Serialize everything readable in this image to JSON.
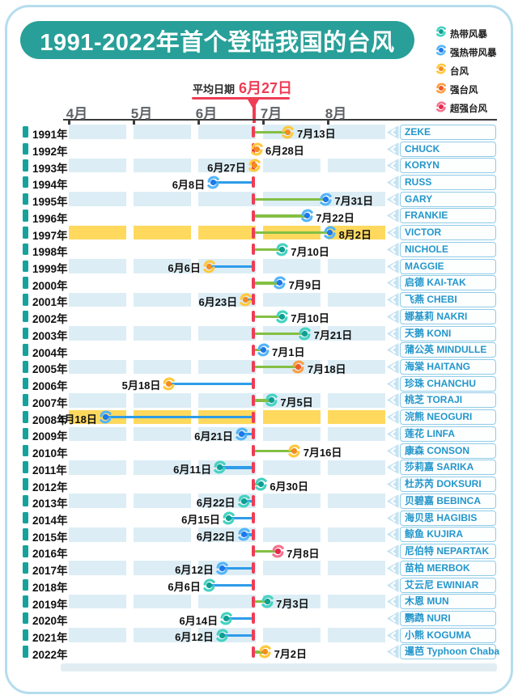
{
  "page": {
    "title": "1991-2022年首个登陆我国的台风"
  },
  "average": {
    "prefix": "平均日期",
    "date": "6月27日",
    "month": 6,
    "day": 27
  },
  "legend": [
    {
      "label": "热带风暴"
    },
    {
      "label": "强热带风暴"
    },
    {
      "label": "台风"
    },
    {
      "label": "强台风"
    },
    {
      "label": "超强台风"
    }
  ],
  "categories": {
    "热带风暴": {
      "arm": "#45d2c1",
      "core": "#0da092"
    },
    "强热带风暴": {
      "arm": "#55b5f8",
      "core": "#1d78ea"
    },
    "台风": {
      "arm": "#ffc93c",
      "core": "#f48c1e"
    },
    "强台风": {
      "arm": "#ff9d43",
      "core": "#ef5a22"
    },
    "超强台风": {
      "arm": "#f4738f",
      "core": "#e8284f"
    }
  },
  "colors": {
    "accent_teal": "#28a099",
    "stripe": "#dcedf5",
    "highlight": "#ffd95e",
    "red": "#ee3d55",
    "line_after": "#84bf44",
    "line_before": "#2e9ce9",
    "badge_arrow": "#c3e3f3",
    "badge_border": "#8fcbe6",
    "badge_text": "#2396cb"
  },
  "chart_data": {
    "type": "timeline",
    "title": "1991-2022年首个登陆我国的台风",
    "average_date_label": "平均日期 6月27日",
    "x_axis": {
      "labels": [
        "4月",
        "5月",
        "6月",
        "7月",
        "8月"
      ]
    },
    "rows": [
      {
        "year": "1991年",
        "date": "7月13日",
        "month": 7,
        "day": 13,
        "category": "台风",
        "name": "ZEKE",
        "highlight": false
      },
      {
        "year": "1992年",
        "date": "6月28日",
        "month": 6,
        "day": 28,
        "category": "台风",
        "name": "CHUCK",
        "highlight": false
      },
      {
        "year": "1993年",
        "date": "6月27日",
        "month": 6,
        "day": 27,
        "category": "台风",
        "name": "KORYN",
        "highlight": false
      },
      {
        "year": "1994年",
        "date": "6月8日",
        "month": 6,
        "day": 8,
        "category": "强热带风暴",
        "name": "RUSS",
        "highlight": false
      },
      {
        "year": "1995年",
        "date": "7月31日",
        "month": 7,
        "day": 31,
        "category": "强热带风暴",
        "name": "GARY",
        "highlight": false
      },
      {
        "year": "1996年",
        "date": "7月22日",
        "month": 7,
        "day": 22,
        "category": "强热带风暴",
        "name": "FRANKIE",
        "highlight": false
      },
      {
        "year": "1997年",
        "date": "8月2日",
        "month": 8,
        "day": 2,
        "category": "强热带风暴",
        "name": "VICTOR",
        "highlight": true
      },
      {
        "year": "1998年",
        "date": "7月10日",
        "month": 7,
        "day": 10,
        "category": "热带风暴",
        "name": "NICHOLE",
        "highlight": false
      },
      {
        "year": "1999年",
        "date": "6月6日",
        "month": 6,
        "day": 6,
        "category": "台风",
        "name": "MAGGIE",
        "highlight": false
      },
      {
        "year": "2000年",
        "date": "7月9日",
        "month": 7,
        "day": 9,
        "category": "强热带风暴",
        "name": "启德 KAI-TAK",
        "highlight": false
      },
      {
        "year": "2001年",
        "date": "6月23日",
        "month": 6,
        "day": 23,
        "category": "台风",
        "name": "飞燕 CHEBI",
        "highlight": false
      },
      {
        "year": "2002年",
        "date": "7月10日",
        "month": 7,
        "day": 10,
        "category": "热带风暴",
        "name": "娜基莉 NAKRI",
        "highlight": false
      },
      {
        "year": "2003年",
        "date": "7月21日",
        "month": 7,
        "day": 21,
        "category": "热带风暴",
        "name": "天鹅 KONI",
        "highlight": false
      },
      {
        "year": "2004年",
        "date": "7月1日",
        "month": 7,
        "day": 1,
        "category": "强热带风暴",
        "name": "蒲公英 MINDULLE",
        "highlight": false
      },
      {
        "year": "2005年",
        "date": "7月18日",
        "month": 7,
        "day": 18,
        "category": "强台风",
        "name": "海棠 HAITANG",
        "highlight": false
      },
      {
        "year": "2006年",
        "date": "5月18日",
        "month": 5,
        "day": 18,
        "category": "台风",
        "name": "珍珠 CHANCHU",
        "highlight": false
      },
      {
        "year": "2007年",
        "date": "7月5日",
        "month": 7,
        "day": 5,
        "category": "热带风暴",
        "name": "桃芝 TORAJI",
        "highlight": false
      },
      {
        "year": "2008年",
        "date": "4月18日",
        "month": 4,
        "day": 18,
        "category": "强热带风暴",
        "name": "浣熊 NEOGURI",
        "highlight": true
      },
      {
        "year": "2009年",
        "date": "6月21日",
        "month": 6,
        "day": 21,
        "category": "强热带风暴",
        "name": "莲花 LINFA",
        "highlight": false
      },
      {
        "year": "2010年",
        "date": "7月16日",
        "month": 7,
        "day": 16,
        "category": "台风",
        "name": "康森 CONSON",
        "highlight": false
      },
      {
        "year": "2011年",
        "date": "6月11日",
        "month": 6,
        "day": 11,
        "category": "热带风暴",
        "name": "莎莉嘉 SARIKA",
        "highlight": false
      },
      {
        "year": "2012年",
        "date": "6月30日",
        "month": 6,
        "day": 30,
        "category": "热带风暴",
        "name": "杜苏芮 DOKSURI",
        "highlight": false
      },
      {
        "year": "2013年",
        "date": "6月22日",
        "month": 6,
        "day": 22,
        "category": "热带风暴",
        "name": "贝碧嘉 BEBINCA",
        "highlight": false
      },
      {
        "year": "2014年",
        "date": "6月15日",
        "month": 6,
        "day": 15,
        "category": "热带风暴",
        "name": "海贝思 HAGIBIS",
        "highlight": false
      },
      {
        "year": "2015年",
        "date": "6月22日",
        "month": 6,
        "day": 22,
        "category": "强热带风暴",
        "name": "鲸鱼 KUJIRA",
        "highlight": false
      },
      {
        "year": "2016年",
        "date": "7月8日",
        "month": 7,
        "day": 8,
        "category": "超强台风",
        "name": "尼伯特 NEPARTAK",
        "highlight": false
      },
      {
        "year": "2017年",
        "date": "6月12日",
        "month": 6,
        "day": 12,
        "category": "强热带风暴",
        "name": "苗柏 MERBOK",
        "highlight": false
      },
      {
        "year": "2018年",
        "date": "6月6日",
        "month": 6,
        "day": 6,
        "category": "热带风暴",
        "name": "艾云尼 EWINIAR",
        "highlight": false
      },
      {
        "year": "2019年",
        "date": "7月3日",
        "month": 7,
        "day": 3,
        "category": "热带风暴",
        "name": "木恩 MUN",
        "highlight": false
      },
      {
        "year": "2020年",
        "date": "6月14日",
        "month": 6,
        "day": 14,
        "category": "热带风暴",
        "name": "鹦鹉 NURI",
        "highlight": false
      },
      {
        "year": "2021年",
        "date": "6月12日",
        "month": 6,
        "day": 12,
        "category": "热带风暴",
        "name": "小熊 KOGUMA",
        "highlight": false
      },
      {
        "year": "2022年",
        "date": "7月2日",
        "month": 7,
        "day": 2,
        "category": "台风",
        "name": "暹芭 Typhoon Chaba",
        "highlight": false
      }
    ]
  }
}
